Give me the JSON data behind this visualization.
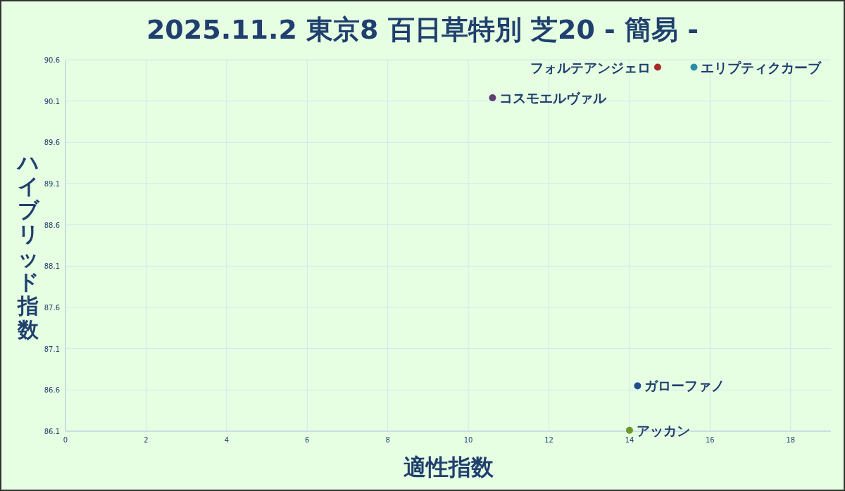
{
  "chart_data": {
    "type": "scatter",
    "title": "2025.11.2 東京8 百日草特別 芝20 - 簡易 -",
    "xlabel": "適性指数",
    "ylabel": "ハイブリッド指数",
    "series": [
      {
        "name": "フォルテアンジェロ",
        "color": "#a52a2a",
        "x": [
          14.7
        ],
        "values": [
          90.51
        ]
      },
      {
        "name": "エリプティクカーブ",
        "color": "#2a8fa5",
        "x": [
          15.6
        ],
        "values": [
          90.51
        ]
      },
      {
        "name": "コスモエルヴァル",
        "color": "#5e3f72",
        "x": [
          10.6
        ],
        "values": [
          90.14
        ]
      },
      {
        "name": "ガローファノ",
        "color": "#1f4e8c",
        "x": [
          14.2
        ],
        "values": [
          86.65
        ]
      },
      {
        "name": "アッカン",
        "color": "#6b9a2a",
        "x": [
          14.0
        ],
        "values": [
          86.11
        ]
      }
    ],
    "xlim": [
      0,
      19
    ],
    "xticks": [
      0,
      2,
      4,
      6,
      8,
      10,
      12,
      14,
      16,
      18
    ],
    "ylim": [
      86.1,
      90.6
    ],
    "yticks": [
      {
        "value": 86.1,
        "label": "86.1"
      },
      {
        "value": 86.6,
        "label": "86.6"
      },
      {
        "value": 87.1,
        "label": "87.1"
      },
      {
        "value": 87.6,
        "label": "87.6"
      },
      {
        "value": 88.1,
        "label": "88.1"
      },
      {
        "value": 88.6,
        "label": "88.6"
      },
      {
        "value": 89.1,
        "label": "89.1"
      },
      {
        "value": 89.6,
        "label": "89.6"
      },
      {
        "value": 90.1,
        "label": "90.1"
      },
      {
        "value": 90.6,
        "label": "90.6"
      }
    ],
    "grid": true,
    "marker": "circle"
  }
}
